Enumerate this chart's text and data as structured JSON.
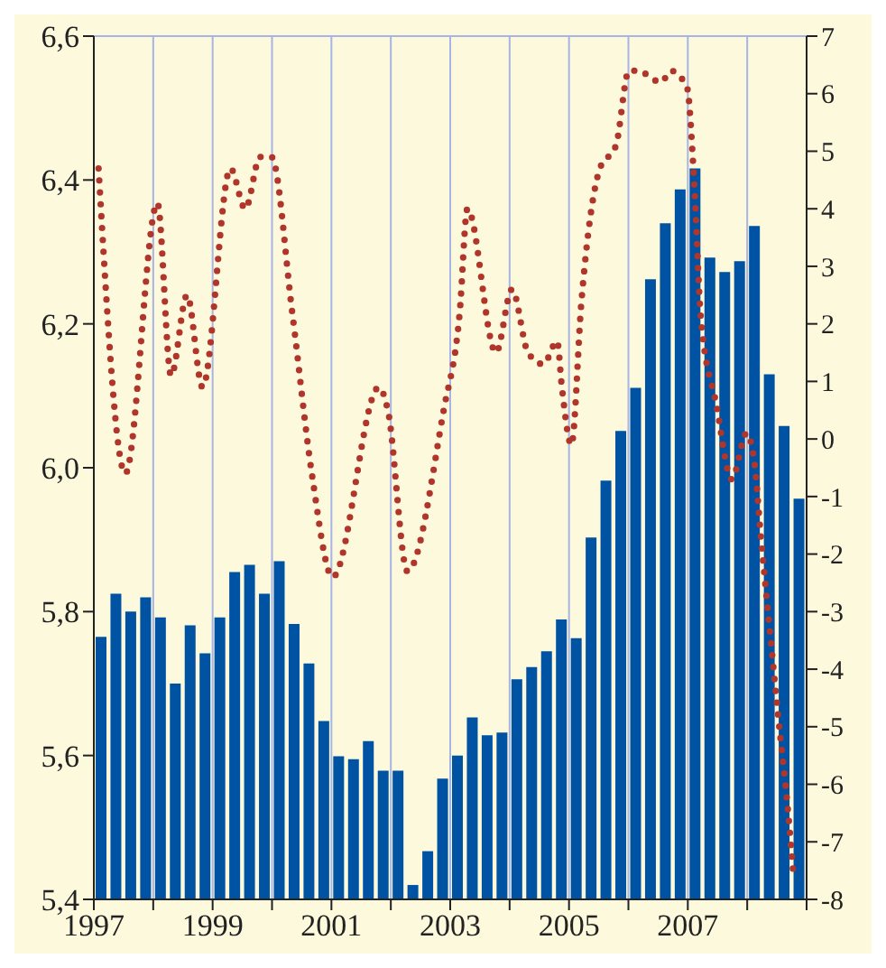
{
  "chart_data": {
    "type": "bar",
    "xlim": [
      1997,
      2009
    ],
    "xticks": [
      {
        "value": 1997,
        "label": "1997"
      },
      {
        "value": 1998,
        "label": null
      },
      {
        "value": 1999,
        "label": "1999"
      },
      {
        "value": 2000,
        "label": null
      },
      {
        "value": 2001,
        "label": "2001"
      },
      {
        "value": 2002,
        "label": null
      },
      {
        "value": 2003,
        "label": "2003"
      },
      {
        "value": 2004,
        "label": null
      },
      {
        "value": 2005,
        "label": "2005"
      },
      {
        "value": 2006,
        "label": null
      },
      {
        "value": 2007,
        "label": "2007"
      },
      {
        "value": 2008,
        "label": null
      },
      {
        "value": 2009,
        "label": null
      }
    ],
    "ylim": [
      5.4,
      6.6
    ],
    "yticks": [
      {
        "value": 5.4,
        "label": "5,4"
      },
      {
        "value": 5.6,
        "label": "5,6"
      },
      {
        "value": 5.8,
        "label": "5,8"
      },
      {
        "value": 6.0,
        "label": "6,0"
      },
      {
        "value": 6.2,
        "label": "6,2"
      },
      {
        "value": 6.4,
        "label": "6,4"
      },
      {
        "value": 6.6,
        "label": "6,6"
      }
    ],
    "y2lim": [
      -8,
      7
    ],
    "y2ticks": [
      -8,
      -7,
      -6,
      -5,
      -4,
      -3,
      -2,
      -1,
      0,
      1,
      2,
      3,
      4,
      5,
      6,
      7
    ],
    "grid": true,
    "series": [
      {
        "type": "bar",
        "color": "#0052a3",
        "x": [
          1997.125,
          1997.375,
          1997.625,
          1997.875,
          1998.125,
          1998.375,
          1998.625,
          1998.875,
          1999.125,
          1999.375,
          1999.625,
          1999.875,
          2000.125,
          2000.375,
          2000.625,
          2000.875,
          2001.125,
          2001.375,
          2001.625,
          2001.875,
          2002.125,
          2002.375,
          2002.625,
          2002.875,
          2003.125,
          2003.375,
          2003.625,
          2003.875,
          2004.125,
          2004.375,
          2004.625,
          2004.875,
          2005.125,
          2005.375,
          2005.625,
          2005.875,
          2006.125,
          2006.375,
          2006.625,
          2006.875,
          2007.125,
          2007.375,
          2007.625,
          2007.875,
          2008.125,
          2008.375,
          2008.625,
          2008.875
        ],
        "values": [
          5.765,
          5.825,
          5.8,
          5.82,
          5.792,
          5.7,
          5.781,
          5.742,
          5.792,
          5.855,
          5.865,
          5.825,
          5.87,
          5.783,
          5.728,
          5.648,
          5.599,
          5.595,
          5.62,
          5.579,
          5.579,
          5.42,
          5.467,
          5.568,
          5.6,
          5.653,
          5.628,
          5.632,
          5.706,
          5.723,
          5.745,
          5.789,
          5.763,
          5.903,
          5.982,
          6.051,
          6.111,
          6.262,
          6.34,
          6.387,
          6.416,
          6.292,
          6.272,
          6.287,
          6.336,
          6.13,
          6.058,
          5.957
        ]
      },
      {
        "type": "line",
        "axis": "y2",
        "color": "#b0362c",
        "line_style": "dotted",
        "x": [
          1997.08,
          1997.53,
          1998.07,
          1998.3,
          1998.57,
          1998.83,
          1999.3,
          1999.55,
          1999.8,
          1999.99,
          2000.34,
          2000.67,
          2001.02,
          2001.8,
          2001.95,
          2002.28,
          2002.89,
          2003.16,
          2003.29,
          2003.77,
          2004.04,
          2004.31,
          2004.57,
          2004.8,
          2004.88,
          2005.04,
          2005.21,
          2005.52,
          2005.79,
          2006.01,
          2006.15,
          2006.55,
          2006.72,
          2006.86,
          2006.99,
          2007.1,
          2007.22,
          2007.48,
          2007.74,
          2007.99,
          2008.12,
          2008.23,
          2008.35,
          2008.52,
          2008.69,
          2008.78
        ],
        "values": [
          4.7,
          -0.6,
          4.1,
          1.1,
          2.5,
          0.9,
          4.7,
          4.0,
          4.9,
          4.9,
          2.2,
          -0.6,
          -2.4,
          0.9,
          0.5,
          -2.3,
          0.5,
          2.2,
          4.0,
          1.5,
          2.6,
          1.5,
          1.3,
          1.7,
          0.9,
          -0.1,
          2.4,
          4.7,
          5.1,
          6.4,
          6.4,
          6.2,
          6.4,
          6.3,
          6.1,
          4.6,
          2.1,
          0.6,
          -0.7,
          0.1,
          -0.4,
          -1.7,
          -3.0,
          -4.8,
          -6.5,
          -7.6
        ]
      }
    ]
  }
}
